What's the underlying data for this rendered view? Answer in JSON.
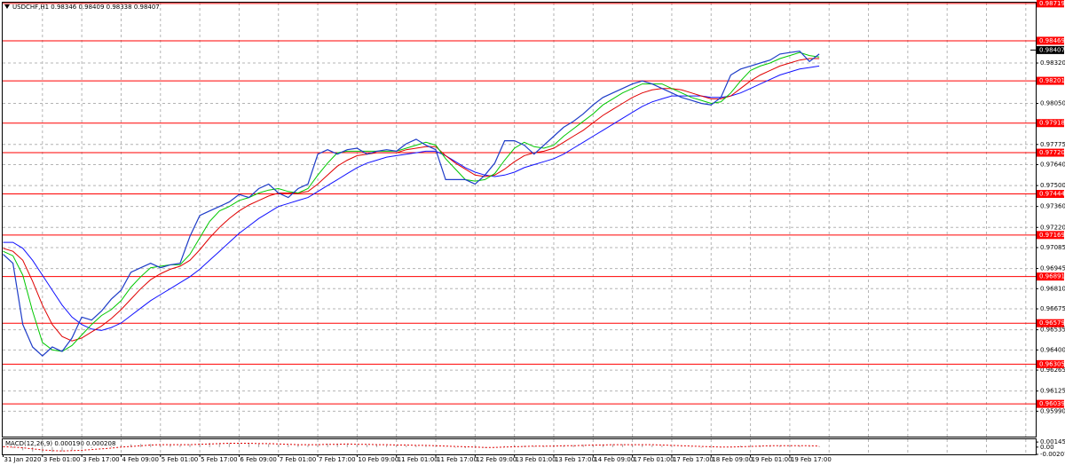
{
  "chart_data": [
    {
      "type": "line",
      "title": "USDCHF,H1  0.98346 0.98409 0.98338 0.98407",
      "categories": [
        "31 Jan 2020",
        null,
        null,
        null,
        "3 Feb 01:00",
        null,
        null,
        null,
        "3 Feb 17:00",
        null,
        null,
        null,
        "4 Feb 09:00",
        null,
        null,
        null,
        "5 Feb 01:00",
        null,
        null,
        null,
        "5 Feb 17:00",
        null,
        null,
        null,
        "6 Feb 09:00",
        null,
        null,
        null,
        "7 Feb 01:00",
        null,
        null,
        null,
        "7 Feb 17:00",
        null,
        null,
        null,
        "10 Feb 09:00",
        null,
        null,
        null,
        "11 Feb 01:00",
        null,
        null,
        null,
        "11 Feb 17:00",
        null,
        null,
        null,
        "12 Feb 09:00",
        null,
        null,
        null,
        "13 Feb 01:00",
        null,
        null,
        null,
        "13 Feb 17:00",
        null,
        null,
        null,
        "14 Feb 09:00",
        null,
        null,
        null,
        "17 Feb 01:00",
        null,
        null,
        null,
        "17 Feb 17:00",
        null,
        null,
        null,
        "18 Feb 09:00",
        null,
        null,
        null,
        "19 Feb 01:00",
        null,
        null,
        null,
        "19 Feb 17:00",
        null,
        null,
        null
      ],
      "series": [
        {
          "color": "#1e3cc8",
          "values": [
            0.9704,
            0.9698,
            0.9657,
            0.9642,
            0.9636,
            0.9642,
            0.9639,
            0.9648,
            0.9662,
            0.966,
            0.9666,
            0.9674,
            0.968,
            0.9692,
            0.9695,
            0.9698,
            0.9695,
            0.9697,
            0.9698,
            0.9716,
            0.973,
            0.9733,
            0.9736,
            0.9739,
            0.9744,
            0.9742,
            0.9748,
            0.9751,
            0.9745,
            0.9742,
            0.9748,
            0.9751,
            0.9771,
            0.9774,
            0.9771,
            0.9774,
            0.9775,
            0.9771,
            0.9773,
            0.9774,
            0.9773,
            0.9778,
            0.9781,
            0.9777,
            0.9774,
            0.9754,
            0.9754,
            0.9754,
            0.9751,
            0.9757,
            0.9765,
            0.978,
            0.978,
            0.9777,
            0.9771,
            0.9777,
            0.9783,
            0.9789,
            0.9793,
            0.9798,
            0.9804,
            0.9809,
            0.9812,
            0.9815,
            0.9818,
            0.982,
            0.9818,
            0.9815,
            0.9812,
            0.9809,
            0.9807,
            0.9805,
            0.9804,
            0.9809,
            0.9824,
            0.9828,
            0.983,
            0.9832,
            0.9834,
            0.9838,
            0.9839,
            0.984,
            0.9833,
            0.9838
          ]
        },
        {
          "color": "#00c800",
          "values": [
            0.9706,
            0.9703,
            0.969,
            0.9666,
            0.9645,
            0.964,
            0.9639,
            0.9643,
            0.965,
            0.9657,
            0.9663,
            0.9667,
            0.9673,
            0.9682,
            0.9689,
            0.9695,
            0.9696,
            0.9697,
            0.9697,
            0.9704,
            0.9715,
            0.9726,
            0.9733,
            0.9736,
            0.974,
            0.9742,
            0.9745,
            0.9747,
            0.9748,
            0.9746,
            0.9745,
            0.9748,
            0.9757,
            0.9765,
            0.9772,
            0.9773,
            0.9773,
            0.9773,
            0.9773,
            0.9773,
            0.9773,
            0.9775,
            0.9777,
            0.9779,
            0.9777,
            0.9768,
            0.9761,
            0.9754,
            0.9753,
            0.9754,
            0.9758,
            0.9767,
            0.9775,
            0.9779,
            0.9776,
            0.9775,
            0.9777,
            0.9783,
            0.9788,
            0.9793,
            0.9798,
            0.9804,
            0.9808,
            0.9812,
            0.9815,
            0.9818,
            0.9818,
            0.9818,
            0.9815,
            0.9812,
            0.9809,
            0.9807,
            0.9805,
            0.9806,
            0.9812,
            0.982,
            0.9827,
            0.983,
            0.9832,
            0.9835,
            0.9837,
            0.9839,
            0.9837,
            0.9836
          ]
        },
        {
          "color": "#e00000",
          "values": [
            0.9708,
            0.9706,
            0.97,
            0.9686,
            0.967,
            0.9657,
            0.9649,
            0.9646,
            0.9648,
            0.9652,
            0.9656,
            0.9661,
            0.9667,
            0.9674,
            0.9681,
            0.9687,
            0.9691,
            0.9694,
            0.9696,
            0.97,
            0.9707,
            0.9715,
            0.9722,
            0.9728,
            0.9733,
            0.9737,
            0.974,
            0.9743,
            0.9745,
            0.9745,
            0.9745,
            0.9746,
            0.9751,
            0.9757,
            0.9763,
            0.9767,
            0.977,
            0.9771,
            0.9772,
            0.9772,
            0.9772,
            0.9774,
            0.9775,
            0.9776,
            0.9776,
            0.977,
            0.9765,
            0.9761,
            0.9757,
            0.9756,
            0.9757,
            0.9761,
            0.9766,
            0.977,
            0.9772,
            0.9773,
            0.9775,
            0.9779,
            0.9783,
            0.9787,
            0.9792,
            0.9797,
            0.9801,
            0.9805,
            0.9809,
            0.9812,
            0.9814,
            0.9815,
            0.9815,
            0.9814,
            0.9812,
            0.981,
            0.9808,
            0.9808,
            0.981,
            0.9815,
            0.982,
            0.9824,
            0.9827,
            0.983,
            0.9832,
            0.9834,
            0.9835,
            0.9835
          ]
        },
        {
          "color": "#1010ff",
          "values": [
            0.9712,
            0.9712,
            0.9708,
            0.97,
            0.969,
            0.968,
            0.967,
            0.9662,
            0.9657,
            0.9654,
            0.9653,
            0.9655,
            0.9658,
            0.9663,
            0.9668,
            0.9673,
            0.9677,
            0.9681,
            0.9685,
            0.9689,
            0.9694,
            0.97,
            0.9706,
            0.9712,
            0.9718,
            0.9723,
            0.9728,
            0.9732,
            0.9736,
            0.9738,
            0.974,
            0.9742,
            0.9746,
            0.975,
            0.9754,
            0.9758,
            0.9762,
            0.9765,
            0.9767,
            0.9769,
            0.977,
            0.9771,
            0.9772,
            0.9773,
            0.9773,
            0.977,
            0.9766,
            0.9762,
            0.9759,
            0.9757,
            0.9756,
            0.9757,
            0.9759,
            0.9762,
            0.9764,
            0.9766,
            0.9768,
            0.9771,
            0.9775,
            0.9779,
            0.9783,
            0.9787,
            0.9791,
            0.9795,
            0.9799,
            0.9803,
            0.9806,
            0.9808,
            0.981,
            0.981,
            0.981,
            0.981,
            0.9809,
            0.9809,
            0.981,
            0.9812,
            0.9815,
            0.9818,
            0.9821,
            0.9824,
            0.9826,
            0.9828,
            0.9829,
            0.983
          ]
        }
      ],
      "ylim": [
        0.9582,
        0.98724
      ],
      "yticks": [
        {
          "value": 0.9832,
          "label": "0.98320"
        },
        {
          "value": 0.9805,
          "label": "0.98050"
        },
        0.97775,
        {
          "value": 0.9764,
          "label": "0.97640"
        },
        {
          "value": 0.975,
          "label": "0.97500"
        },
        {
          "value": 0.9736,
          "label": "0.97360"
        },
        {
          "value": 0.9722,
          "label": "0.97220"
        },
        0.97085,
        0.96945,
        {
          "value": 0.9681,
          "label": "0.96810"
        },
        0.96675,
        0.96535,
        {
          "value": 0.964,
          "label": "0.96400"
        },
        0.96265,
        0.96125,
        {
          "value": 0.9599,
          "label": "0.95990"
        }
      ],
      "levels": [
        0.98719,
        0.98469,
        0.98201,
        0.97918,
        {
          "value": 0.9772,
          "label": "0.97720"
        },
        0.97444,
        0.97169,
        0.96891,
        0.96579,
        0.96305,
        0.96039
      ],
      "level_color": "#ff0000",
      "last_price": 0.98407,
      "grid": true
    },
    {
      "type": "macd",
      "title": "MACD(12,26,9) 0.000190 0.000208",
      "series": [
        {
          "type": "bar",
          "color": "#a0a0a0",
          "values": [
            0,
            -0.0003,
            -0.0009,
            -0.0013,
            -0.0015,
            -0.0014,
            -0.0012,
            -0.0009,
            -0.0005,
            -0.0003,
            0,
            0.0003,
            0.0005,
            0.0008,
            0.0009,
            0.0009,
            0.0008,
            0.0007,
            0.0006,
            0.0008,
            0.0011,
            0.0012,
            0.0012,
            0.0011,
            0.0011,
            0.001,
            0.0009,
            0.0009,
            0.0007,
            0.0006,
            0.0006,
            0.0006,
            0.0009,
            0.001,
            0.001,
            0.0009,
            0.0008,
            0.0007,
            0.0006,
            0.0005,
            0.0005,
            0.0005,
            0.0005,
            0.0004,
            0.0003,
            0,
            -0.0002,
            -0.0003,
            -0.0003,
            -0.0002,
            0,
            0.0003,
            0.0004,
            0.0004,
            0.0003,
            0.0003,
            0.0004,
            0.0005,
            0.0006,
            0.0007,
            0.0007,
            0.0008,
            0.0008,
            0.0008,
            0.0008,
            0.0007,
            0.0006,
            0.0004,
            0.0002,
            0.0001,
            -0.0001,
            -0.0002,
            -0.0002,
            -0.0001,
            0.0002,
            0.0004,
            0.0005,
            0.0005,
            0.0005,
            0.0005,
            0.0005,
            0.0004,
            0.0002,
            0.0002
          ]
        },
        {
          "type": "line",
          "color": "#e00000",
          "values": [
            0.0001,
            0,
            -0.0002,
            -0.0005,
            -0.0008,
            -0.001,
            -0.0011,
            -0.001,
            -0.0009,
            -0.0007,
            -0.0005,
            -0.0003,
            0,
            0.0002,
            0.0004,
            0.0006,
            0.0007,
            0.0007,
            0.0007,
            0.0007,
            0.0008,
            0.0009,
            0.001,
            0.0011,
            0.0011,
            0.0011,
            0.001,
            0.001,
            0.0009,
            0.0008,
            0.0007,
            0.0007,
            0.0007,
            0.0008,
            0.0008,
            0.0009,
            0.0008,
            0.0008,
            0.0007,
            0.0007,
            0.0006,
            0.0006,
            0.0005,
            0.0005,
            0.0004,
            0.0003,
            0.0002,
            0.0001,
            0,
            -0.0001,
            -0.0001,
            0,
            0.0001,
            0.0002,
            0.0003,
            0.0003,
            0.0003,
            0.0004,
            0.0004,
            0.0005,
            0.0006,
            0.0006,
            0.0007,
            0.0007,
            0.0007,
            0.0007,
            0.0007,
            0.0006,
            0.0005,
            0.0004,
            0.0003,
            0.0002,
            0.0001,
            0,
            0,
            0.0001,
            0.0002,
            0.0003,
            0.0004,
            0.0004,
            0.0004,
            0.0004,
            0.0004,
            0.0003
          ]
        }
      ],
      "ylim": [
        -0.002078,
        0.00225
      ],
      "yticks": [
        0.001458,
        {
          "value": 0,
          "label": "0.00"
        },
        -0.002078
      ]
    }
  ]
}
